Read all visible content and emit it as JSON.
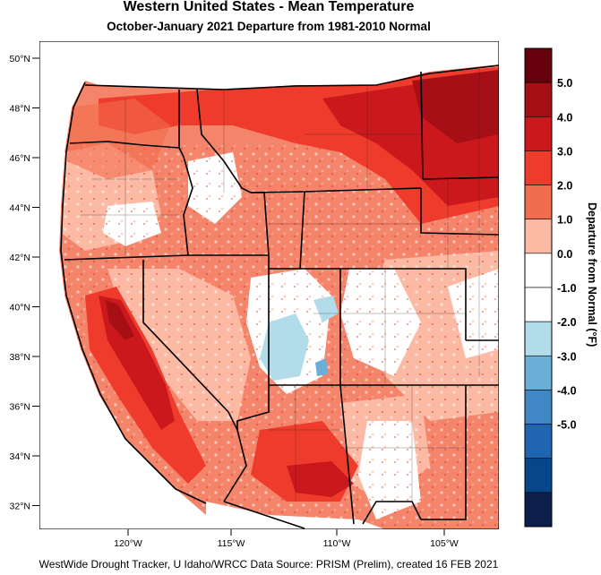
{
  "title": "Western United States - Mean Temperature",
  "subtitle": "October-January 2021  Departure from 1981-2010 Normal",
  "footer": "WestWide Drought Tracker, U Idaho/WRCC Data Source: PRISM (Prelim), created 16 FEB 2021",
  "colorbar": {
    "label": "Departure from Normal (°F)",
    "bins": [
      {
        "color": "#67000d"
      },
      {
        "color": "#a50f15"
      },
      {
        "color": "#cb181d"
      },
      {
        "color": "#ef3b2c"
      },
      {
        "color": "#f26d4f"
      },
      {
        "color": "#fcb9a3"
      },
      {
        "color": "#ffffff"
      },
      {
        "color": "#ffffff"
      },
      {
        "color": "#b2dcea"
      },
      {
        "color": "#6baed6"
      },
      {
        "color": "#3f88c5"
      },
      {
        "color": "#1f65b0"
      },
      {
        "color": "#08468a"
      },
      {
        "color": "#0b1f4a"
      }
    ],
    "tick_labels": [
      "5.0",
      "4.0",
      "3.0",
      "2.0",
      "1.0",
      "0.0",
      "-1.0",
      "-2.0",
      "-3.0",
      "-4.0",
      "-5.0"
    ]
  },
  "axes": {
    "lat_labels": [
      "50°N",
      "48°N",
      "46°N",
      "44°N",
      "42°N",
      "40°N",
      "38°N",
      "36°N",
      "34°N",
      "32°N"
    ],
    "lon_labels": [
      "120°W",
      "115°W",
      "110°W",
      "105°W"
    ]
  }
}
